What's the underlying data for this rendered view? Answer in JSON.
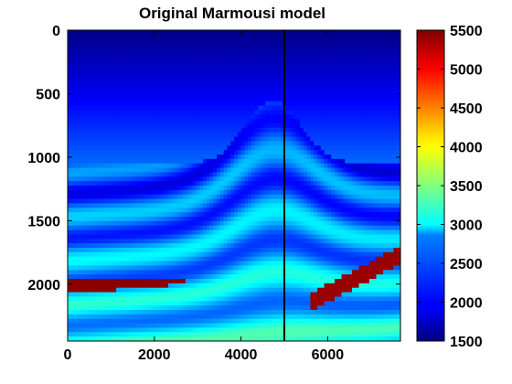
{
  "chart_data": {
    "type": "heatmap",
    "title": "Original Marmousi model",
    "xlabel": "",
    "ylabel": "",
    "xlim": [
      0,
      7680
    ],
    "ylim": [
      0,
      2448
    ],
    "y_inverted": true,
    "x_ticks": [
      0,
      2000,
      4000,
      6000
    ],
    "y_ticks": [
      0,
      500,
      1000,
      1500,
      2000
    ],
    "x_tick_labels": [
      "0",
      "2000",
      "4000",
      "6000"
    ],
    "y_tick_labels": [
      "0",
      "500",
      "1000",
      "1500",
      "2000"
    ],
    "colormap": "jet",
    "colorbar": {
      "range": [
        1500,
        5500
      ],
      "ticks": [
        1500,
        2000,
        2500,
        3000,
        3500,
        4000,
        4500,
        5000,
        5500
      ],
      "tick_labels": [
        "1500",
        "2000",
        "2500",
        "3000",
        "3500",
        "4000",
        "4500",
        "5000",
        "5500"
      ],
      "placement": "right"
    },
    "grid": false,
    "overlay_lines": [
      {
        "orientation": "vertical",
        "x": 5000,
        "color": "#000000"
      }
    ]
  }
}
